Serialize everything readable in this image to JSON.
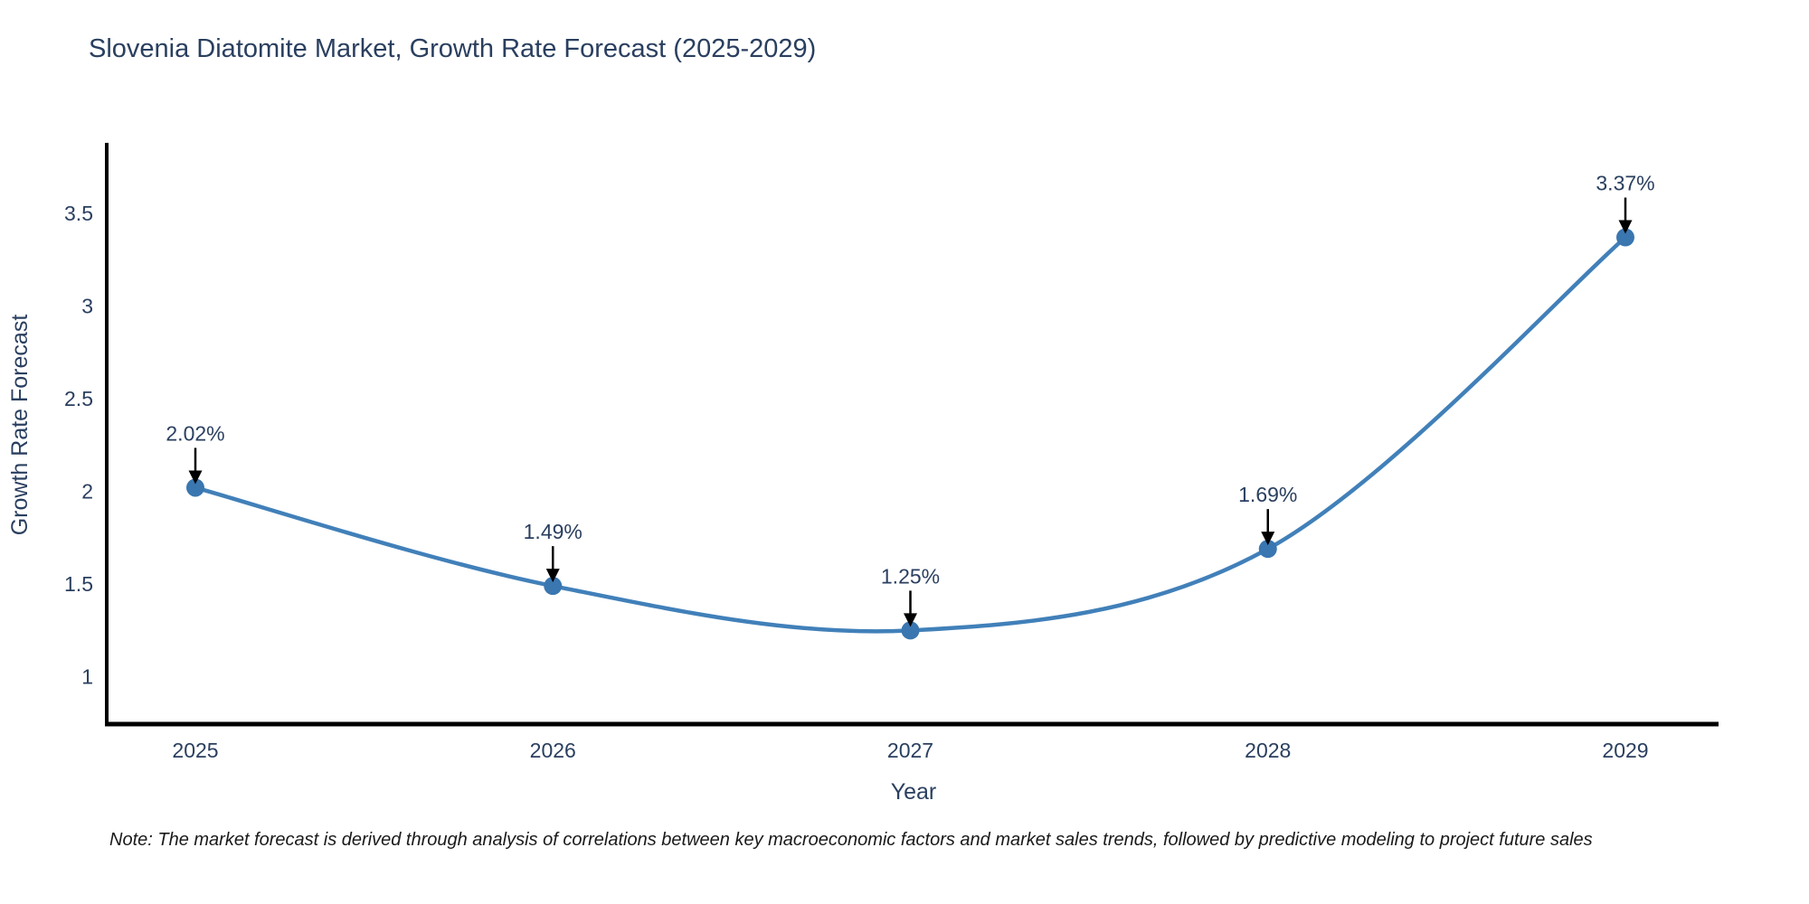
{
  "title": "Slovenia Diatomite Market, Growth Rate Forecast (2025-2029)",
  "note": "Note: The market forecast is derived through analysis of correlations between key macroeconomic factors and market sales trends, followed by predictive modeling to project future sales",
  "chart_data": {
    "type": "line",
    "title": "Slovenia Diatomite Market, Growth Rate Forecast (2025-2029)",
    "xlabel": "Year",
    "ylabel": "Growth Rate Forecast",
    "x": [
      2025,
      2026,
      2027,
      2028,
      2029
    ],
    "values": [
      2.02,
      1.49,
      1.25,
      1.69,
      3.37
    ],
    "point_labels": [
      "2.02%",
      "1.49%",
      "1.25%",
      "1.69%",
      "3.37%"
    ],
    "xticks": [
      "2025",
      "2026",
      "2027",
      "2028",
      "2029"
    ],
    "yticks": [
      1,
      1.5,
      2,
      2.5,
      3,
      3.5
    ],
    "ylim": [
      0.74,
      3.87
    ],
    "grid": false,
    "legend_position": "none",
    "line_shape": "spline",
    "line_color": "#4180b9",
    "marker_color": "#3a76b0",
    "axis_color": "#000000",
    "text_color": "#2a3f5f",
    "annotation_arrow_color": "#000000"
  }
}
